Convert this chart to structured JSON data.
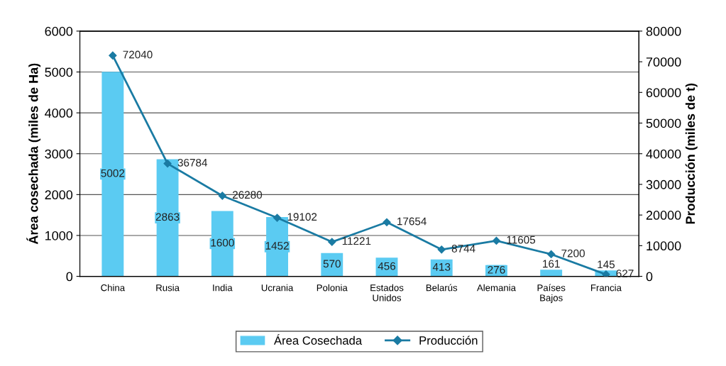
{
  "chart_data": {
    "type": "bar",
    "ylabel": "Área cosechada (miles de Ha)",
    "y2label": "Producción (miles de t)",
    "categories": [
      "China",
      "Rusia",
      "India",
      "Ucrania",
      "Polonia",
      "Estados\nUnidos",
      "Belarús",
      "Alemania",
      "Países\nBajos",
      "Francia"
    ],
    "series": [
      {
        "name": "Área Cosechada",
        "color": "#5bcbf2",
        "values": [
          5002,
          2863,
          1600,
          1452,
          570,
          456,
          413,
          276,
          161,
          145
        ]
      },
      {
        "name": "Producción",
        "type": "line",
        "axis": "y2",
        "color": "#1a7ba3",
        "marker": "diamond",
        "values": [
          72040,
          36784,
          26280,
          19102,
          11221,
          17654,
          8744,
          11605,
          7200,
          627
        ]
      }
    ],
    "ylim": [
      0,
      6000
    ],
    "yticks": [
      0,
      1000,
      2000,
      3000,
      4000,
      5000,
      6000
    ],
    "y2lim": [
      0,
      80000
    ],
    "y2ticks": [
      0,
      10000,
      20000,
      30000,
      40000,
      50000,
      60000,
      70000,
      80000
    ],
    "grid": "y",
    "legend": "bottom",
    "data_labels": true
  }
}
